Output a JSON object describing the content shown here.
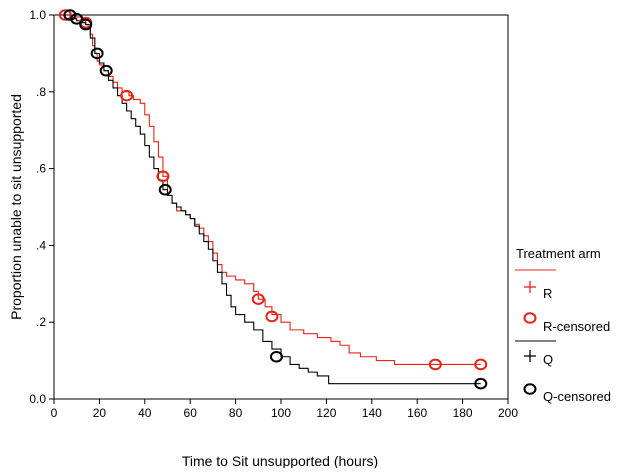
{
  "chart_data": {
    "type": "line",
    "subtype": "kaplan-meier step curve",
    "xlabel": "Time to Sit unsupported (hours)",
    "ylabel": "Proportion unable to sit unsupported",
    "xlim": [
      0,
      200
    ],
    "ylim": [
      0,
      1
    ],
    "x_ticks": [
      "0",
      "20",
      "40",
      "60",
      "80",
      "100",
      "120",
      "140",
      "160",
      "180",
      "200"
    ],
    "y_ticks": [
      "0.0",
      ".2",
      ".4",
      ".6",
      ".8",
      "1.0"
    ],
    "grid": false,
    "legend": {
      "title": "Treatment arm",
      "placement": "right",
      "entries": [
        "R",
        "R-censored",
        "Q",
        "Q-censored"
      ]
    },
    "series": [
      {
        "name": "R",
        "color": "#e8231a",
        "x": [
          0,
          3,
          6,
          9,
          12,
          14,
          16,
          17,
          18,
          19,
          20,
          22,
          24,
          26,
          28,
          30,
          33,
          35,
          38,
          40,
          42,
          44,
          46,
          48,
          50,
          52,
          54,
          56,
          58,
          60,
          62,
          64,
          66,
          68,
          70,
          72,
          74,
          76,
          80,
          84,
          88,
          90,
          93,
          96,
          100,
          104,
          110,
          116,
          122,
          126,
          130,
          135,
          142,
          150,
          160,
          172,
          188
        ],
        "y": [
          1.0,
          1.0,
          1.0,
          0.995,
          0.99,
          0.975,
          0.95,
          0.92,
          0.9,
          0.88,
          0.87,
          0.855,
          0.84,
          0.825,
          0.81,
          0.8,
          0.79,
          0.78,
          0.77,
          0.74,
          0.71,
          0.67,
          0.63,
          0.58,
          0.53,
          0.51,
          0.49,
          0.49,
          0.48,
          0.47,
          0.455,
          0.445,
          0.425,
          0.41,
          0.38,
          0.35,
          0.33,
          0.32,
          0.31,
          0.3,
          0.28,
          0.26,
          0.24,
          0.22,
          0.2,
          0.18,
          0.17,
          0.16,
          0.15,
          0.14,
          0.12,
          0.11,
          0.1,
          0.09,
          0.09,
          0.09,
          0.09
        ]
      },
      {
        "name": "Q",
        "color": "#000000",
        "x": [
          0,
          2,
          5,
          8,
          10,
          12,
          14,
          16,
          18,
          20,
          22,
          24,
          26,
          28,
          30,
          32,
          34,
          36,
          38,
          40,
          42,
          44,
          46,
          48,
          50,
          52,
          54,
          56,
          58,
          60,
          62,
          64,
          66,
          68,
          70,
          72,
          74,
          76,
          78,
          80,
          84,
          88,
          92,
          96,
          100,
          104,
          108,
          112,
          116,
          121,
          130,
          150,
          170,
          188
        ],
        "y": [
          1.0,
          1.0,
          1.0,
          0.99,
          0.985,
          0.98,
          0.975,
          0.94,
          0.9,
          0.875,
          0.855,
          0.83,
          0.81,
          0.79,
          0.77,
          0.75,
          0.73,
          0.71,
          0.69,
          0.66,
          0.63,
          0.6,
          0.57,
          0.545,
          0.53,
          0.51,
          0.5,
          0.49,
          0.48,
          0.47,
          0.45,
          0.43,
          0.41,
          0.39,
          0.36,
          0.33,
          0.3,
          0.27,
          0.24,
          0.22,
          0.2,
          0.18,
          0.15,
          0.13,
          0.11,
          0.09,
          0.08,
          0.07,
          0.06,
          0.04,
          0.04,
          0.04,
          0.04,
          0.04
        ]
      }
    ],
    "censored": [
      {
        "name": "R-censored",
        "color": "#e8231a",
        "x": [
          5,
          14,
          32,
          48,
          90,
          96,
          168,
          188
        ],
        "y": [
          1.0,
          0.98,
          0.79,
          0.58,
          0.26,
          0.215,
          0.09,
          0.09
        ]
      },
      {
        "name": "Q-censored",
        "color": "#000000",
        "x": [
          7,
          10,
          14,
          19,
          23,
          49,
          98,
          188
        ],
        "y": [
          1.0,
          0.99,
          0.975,
          0.9,
          0.855,
          0.545,
          0.11,
          0.04
        ]
      }
    ]
  }
}
